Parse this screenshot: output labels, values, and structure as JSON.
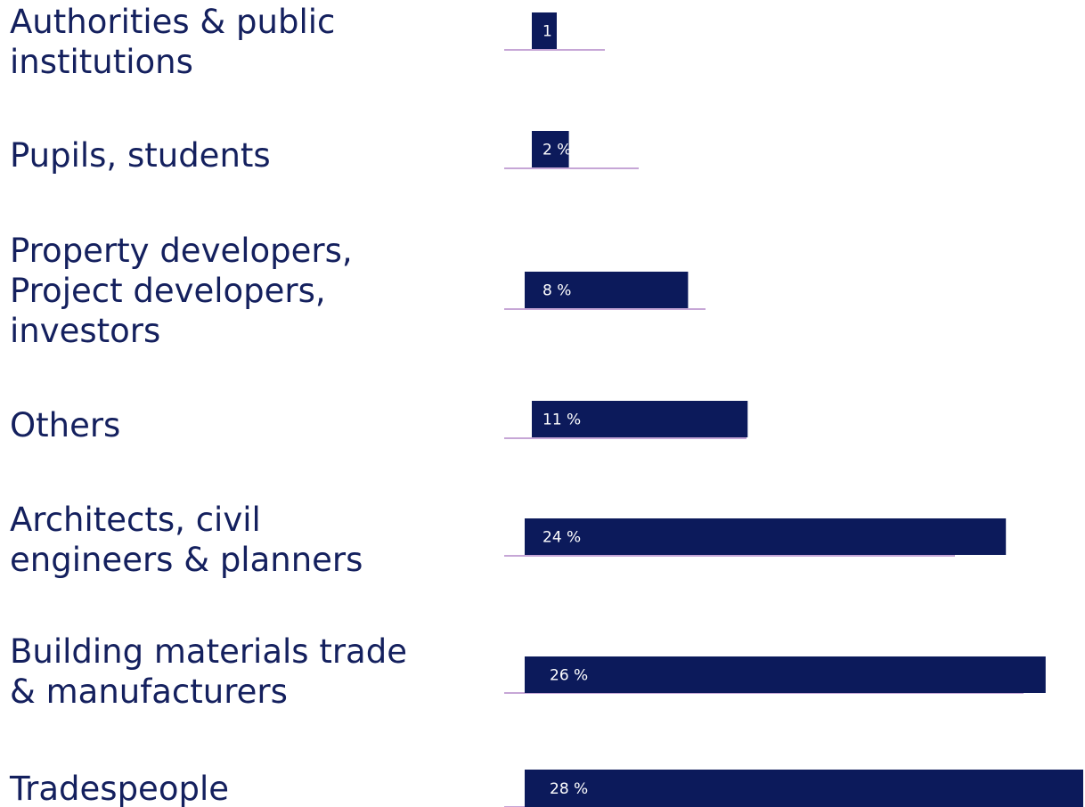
{
  "chart_data": {
    "type": "bar",
    "orientation": "horizontal",
    "categories": [
      [
        "Authorities & public",
        "institutions"
      ],
      [
        "Pupils, students"
      ],
      [
        "Property developers,",
        "Project developers,",
        "investors"
      ],
      [
        "Others"
      ],
      [
        "Architects, civil",
        "engineers & planners"
      ],
      [
        "Building materials trade",
        "& manufacturers"
      ],
      [
        "Tradespeople"
      ]
    ],
    "values": [
      1,
      2,
      8,
      11,
      24,
      26,
      28
    ],
    "value_labels": [
      "1 %",
      "2 %",
      "8 %",
      "11 %",
      "24 %",
      "26 %",
      "28 %"
    ],
    "unit": "%",
    "title": "",
    "xlabel": "",
    "ylabel": "",
    "xlim": [
      0,
      28
    ],
    "grid": false,
    "legend": "none"
  },
  "colors": {
    "bar": "#0c1a5b",
    "baseline": "#c6a6d6",
    "label_text": "#14205e",
    "value_text": "#ffffff"
  }
}
